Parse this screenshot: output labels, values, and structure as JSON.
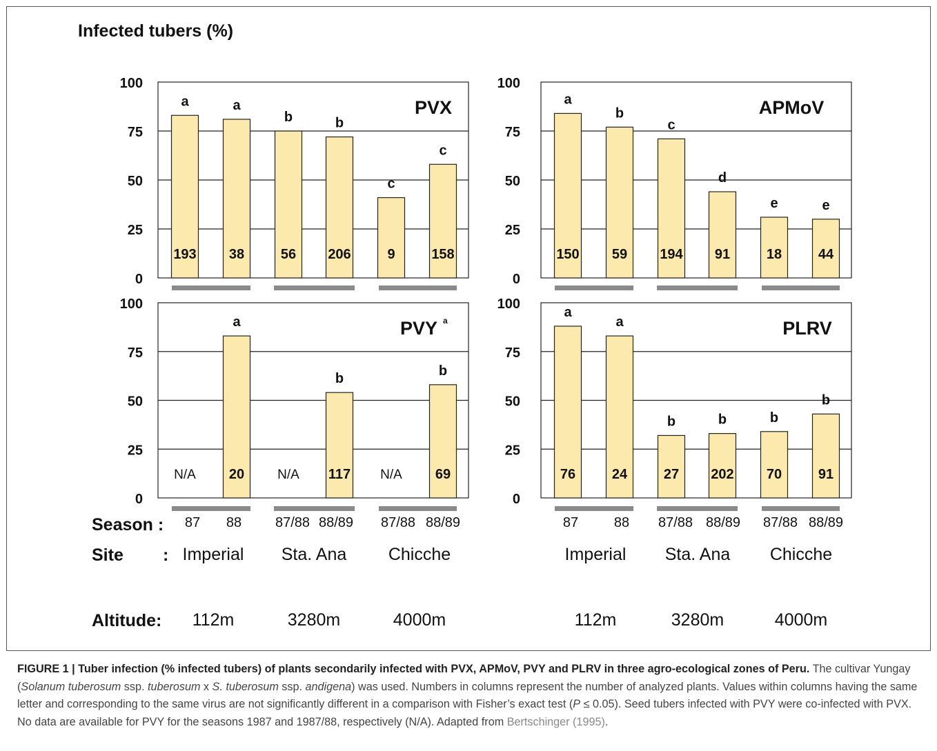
{
  "figure": {
    "y_axis_title": "Infected tubers (%)",
    "season_label": "Season :",
    "site_label": "Site",
    "site_colon": ":",
    "altitude_label": "Altitude:"
  },
  "groups": [
    {
      "site": "Imperial",
      "altitude": "112m"
    },
    {
      "site": "Sta. Ana",
      "altitude": "3280m"
    },
    {
      "site": "Chicche",
      "altitude": "4000m"
    }
  ],
  "chart_data": [
    {
      "type": "bar",
      "title": "PVX",
      "ylim": [
        0,
        100
      ],
      "yticks": [
        0,
        25,
        50,
        75,
        100
      ],
      "grid": true,
      "categories": [
        "87",
        "88",
        "87/88",
        "88/89",
        "87/88",
        "88/89"
      ],
      "groups": [
        "Imperial",
        "Sta. Ana",
        "Chicche"
      ],
      "values": [
        83,
        81,
        75,
        72,
        41,
        58
      ],
      "letters": [
        "a",
        "a",
        "b",
        "b",
        "c",
        "c"
      ],
      "n": [
        "193",
        "38",
        "56",
        "206",
        "9",
        "158"
      ]
    },
    {
      "type": "bar",
      "title": "APMoV",
      "ylim": [
        0,
        100
      ],
      "yticks": [
        0,
        25,
        50,
        75,
        100
      ],
      "grid": true,
      "categories": [
        "87",
        "88",
        "87/88",
        "88/89",
        "87/88",
        "88/89"
      ],
      "groups": [
        "Imperial",
        "Sta. Ana",
        "Chicche"
      ],
      "values": [
        84,
        77,
        71,
        44,
        31,
        30
      ],
      "letters": [
        "a",
        "b",
        "c",
        "d",
        "e",
        "e"
      ],
      "n": [
        "150",
        "59",
        "194",
        "91",
        "18",
        "44"
      ]
    },
    {
      "type": "bar",
      "title": "PVY",
      "title_superscript": "a",
      "ylim": [
        0,
        100
      ],
      "yticks": [
        0,
        25,
        50,
        75,
        100
      ],
      "grid": true,
      "categories": [
        "87",
        "88",
        "87/88",
        "88/89",
        "87/88",
        "88/89"
      ],
      "groups": [
        "Imperial",
        "Sta. Ana",
        "Chicche"
      ],
      "values": [
        null,
        83,
        null,
        54,
        null,
        58
      ],
      "letters": [
        "",
        "a",
        "",
        "b",
        "",
        "b"
      ],
      "n": [
        "N/A",
        "20",
        "N/A",
        "117",
        "N/A",
        "69"
      ]
    },
    {
      "type": "bar",
      "title": "PLRV",
      "ylim": [
        0,
        100
      ],
      "yticks": [
        0,
        25,
        50,
        75,
        100
      ],
      "grid": true,
      "categories": [
        "87",
        "88",
        "87/88",
        "88/89",
        "87/88",
        "88/89"
      ],
      "groups": [
        "Imperial",
        "Sta. Ana",
        "Chicche"
      ],
      "values": [
        88,
        83,
        32,
        33,
        34,
        43
      ],
      "letters": [
        "a",
        "a",
        "b",
        "b",
        "b",
        "b"
      ],
      "n": [
        "76",
        "24",
        "27",
        "202",
        "70",
        "91"
      ]
    }
  ],
  "caption": {
    "bold": "FIGURE 1 | Tuber infection (% infected tubers) of plants secondarily infected with PVX, APMoV, PVY and PLRV in three agro-ecological zones of Peru.",
    "text1": " The cultivar Yungay (",
    "italic1": "Solanum tuberosum",
    "text2": " ssp. ",
    "italic2": "tuberosum",
    "text3": " x ",
    "italic3": "S. tuberosum",
    "text4": " ssp. ",
    "italic4": "andigena",
    "text5": ") was used. Numbers in columns represent the number of analyzed plants. Values within columns having the same letter and corresponding to the same virus are not significantly different in a comparison with Fisher’s exact test (",
    "italic5": "P",
    "text6": " ≤ 0.05). Seed tubers infected with PVY were co-infected with PVX. No data are available for PVY for the seasons 1987 and 1987/88, respectively (N/A). Adapted from ",
    "ref": "Bertschinger (1995)",
    "text7": "."
  }
}
